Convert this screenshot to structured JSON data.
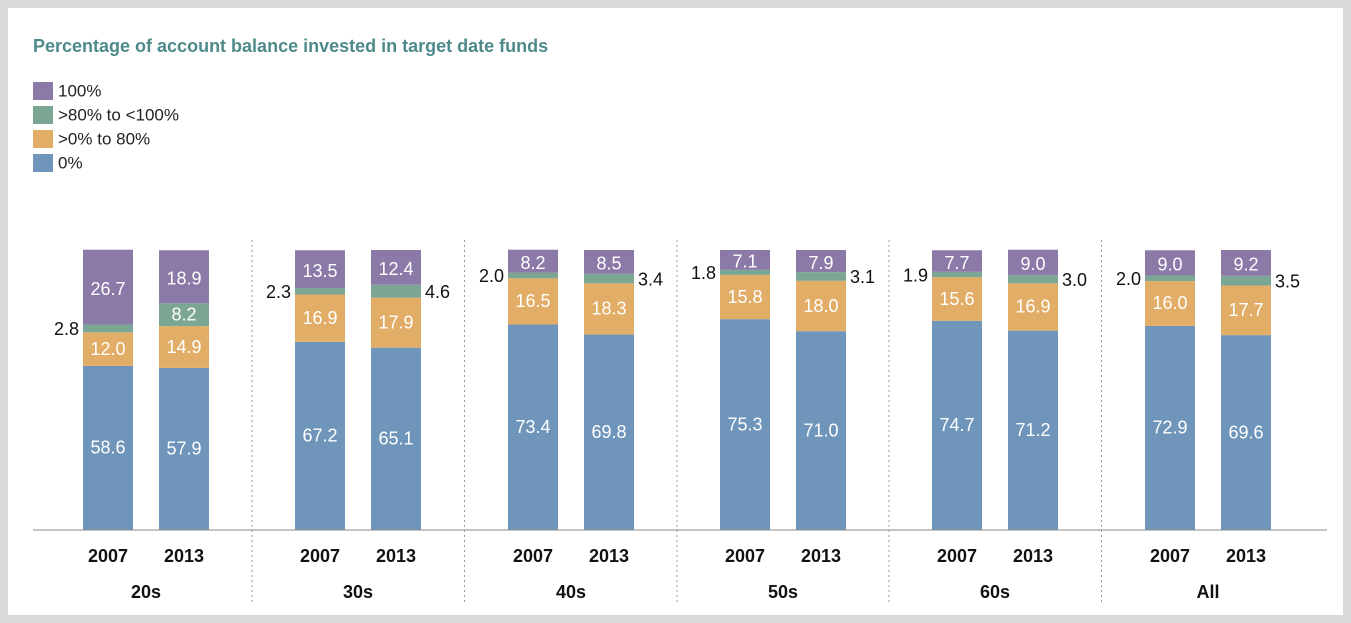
{
  "chart_data": {
    "type": "stacked_bar",
    "title": "Percentage of account balance invested in target date funds",
    "groups": [
      "20s",
      "30s",
      "40s",
      "50s",
      "60s",
      "All"
    ],
    "categories": [
      "2007",
      "2013",
      "2007",
      "2013",
      "2007",
      "2013",
      "2007",
      "2013",
      "2007",
      "2013",
      "2007",
      "2013"
    ],
    "ylim": [
      0,
      100
    ],
    "series": [
      {
        "name": "0%",
        "color": "#6f96ba",
        "values": [
          58.6,
          57.9,
          67.2,
          65.1,
          73.4,
          69.8,
          75.3,
          71.0,
          74.7,
          71.2,
          72.9,
          69.6
        ],
        "value_labels": [
          "58.6",
          "57.9",
          "67.2",
          "65.1",
          "73.4",
          "69.8",
          "75.3",
          "71.0",
          "74.7",
          "71.2",
          "72.9",
          "69.6"
        ]
      },
      {
        "name": ">0% to 80%",
        "color": "#e2ad66",
        "values": [
          12.0,
          14.9,
          16.9,
          17.9,
          16.5,
          18.3,
          15.8,
          18.0,
          15.6,
          16.9,
          16.0,
          17.7
        ],
        "value_labels": [
          "12.0",
          "14.9",
          "16.9",
          "17.9",
          "16.5",
          "18.3",
          "15.8",
          "18.0",
          "15.6",
          "16.9",
          "16.0",
          "17.7"
        ]
      },
      {
        "name": ">80% to <100%",
        "color": "#7ba694",
        "values": [
          2.8,
          8.2,
          2.3,
          4.6,
          2.0,
          3.4,
          1.8,
          3.1,
          1.9,
          3.0,
          2.0,
          3.5
        ],
        "value_labels": [
          "2.8",
          "8.2",
          "2.3",
          "4.6",
          "2.0",
          "3.4",
          "1.8",
          "3.1",
          "1.9",
          "3.0",
          "2.0",
          "3.5"
        ]
      },
      {
        "name": "100%",
        "color": "#8b79a7",
        "values": [
          26.7,
          18.9,
          13.5,
          12.4,
          8.2,
          8.5,
          7.1,
          7.9,
          7.7,
          9.0,
          9.0,
          9.2
        ],
        "value_labels": [
          "26.7",
          "18.9",
          "13.5",
          "12.4",
          "8.2",
          "8.5",
          "7.1",
          "7.9",
          "7.7",
          "9.0",
          "9.0",
          "9.2"
        ]
      }
    ]
  }
}
